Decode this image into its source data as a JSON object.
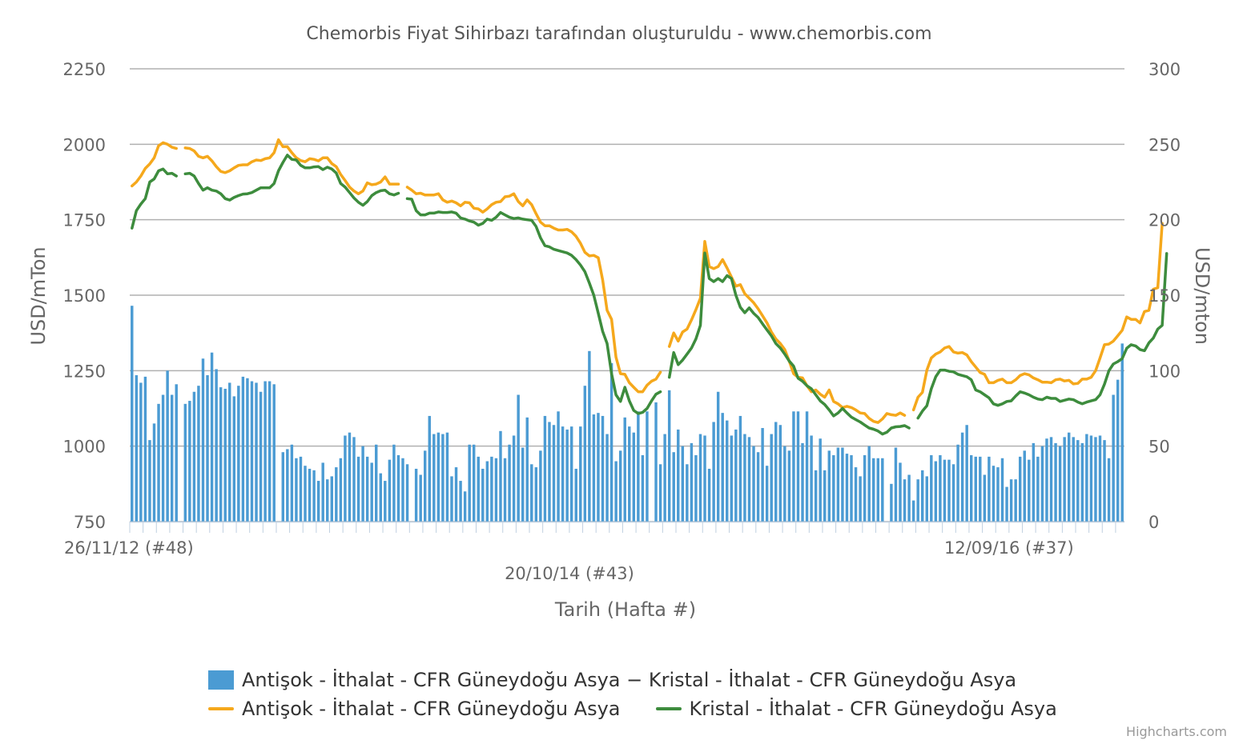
{
  "chart_data": {
    "type": "line",
    "title": "Chemorbis Fiyat Sihirbazı tarafından oluşturuldu - www.chemorbis.com",
    "xlabel": "Tarih (Hafta #)",
    "ylabel_left": "USD/mTon",
    "ylabel_right": "USD/mton",
    "ylim_left": [
      750,
      2250
    ],
    "ylim_right": [
      0,
      300
    ],
    "yticks_left": [
      "750",
      "1000",
      "1250",
      "1500",
      "1750",
      "2000",
      "2250"
    ],
    "yticks_right": [
      "0",
      "50",
      "100",
      "150",
      "200",
      "250",
      "300"
    ],
    "x_tick_labels": [
      {
        "label": "26/11/12 (#48)",
        "week_index": 0
      },
      {
        "label": "20/10/14 (#43)",
        "week_index": 99
      },
      {
        "label": "12/09/16 (#37)",
        "week_index": 198
      }
    ],
    "grid": true,
    "legend_position": "bottom",
    "series": [
      {
        "name": "Antişok - İthalat - CFR Güneydoğu Asya − Kristal - İthalat - CFR Güneydoğu Asya",
        "type": "bar",
        "axis": "right",
        "color": "#4b9bd3",
        "values": [
          143,
          97,
          92,
          96,
          54,
          65,
          78,
          84,
          100,
          84,
          91,
          null,
          78,
          80,
          86,
          90,
          108,
          97,
          112,
          101,
          89,
          88,
          92,
          83,
          90,
          96,
          95,
          93,
          92,
          86,
          93,
          93,
          91,
          null,
          46,
          48,
          51,
          42,
          43,
          37,
          35,
          34,
          27,
          39,
          28,
          30,
          36,
          42,
          57,
          59,
          56,
          43,
          50,
          43,
          39,
          51,
          32,
          27,
          41,
          51,
          44,
          42,
          38,
          null,
          35,
          31,
          47,
          70,
          58,
          59,
          58,
          59,
          30,
          36,
          27,
          20,
          51,
          51,
          43,
          35,
          40,
          43,
          42,
          60,
          42,
          51,
          57,
          84,
          49,
          69,
          38,
          36,
          47,
          70,
          66,
          64,
          73,
          63,
          61,
          63,
          35,
          63,
          90,
          113,
          71,
          72,
          70,
          58,
          105,
          40,
          47,
          69,
          63,
          59,
          73,
          44,
          73,
          null,
          79,
          38,
          58,
          87,
          46,
          61,
          50,
          38,
          52,
          44,
          58,
          57,
          35,
          66,
          86,
          72,
          67,
          57,
          61,
          70,
          58,
          56,
          50,
          46,
          62,
          37,
          58,
          66,
          64,
          50,
          47,
          73,
          73,
          52,
          73,
          57,
          34,
          55,
          34,
          47,
          44,
          49,
          49,
          45,
          44,
          36,
          30,
          44,
          50,
          42,
          42,
          42,
          null,
          25,
          49,
          39,
          28,
          31,
          14,
          28,
          34,
          30,
          44,
          40,
          44,
          41,
          41,
          38,
          51,
          59,
          64,
          44,
          43,
          43,
          31,
          43,
          37,
          36,
          42,
          23,
          28,
          28,
          43,
          47,
          41,
          52,
          43,
          50,
          55,
          56,
          52,
          50,
          56,
          59,
          56,
          54,
          52,
          58,
          57,
          56,
          57,
          54,
          42,
          84,
          94,
          118
        ]
      },
      {
        "name": "Antişok - İthalat - CFR Güneydoğu Asya",
        "type": "line",
        "axis": "left",
        "color": "#f5a81c",
        "values": [
          1862,
          1875,
          1895,
          1920,
          1935,
          1955,
          1995,
          2005,
          2000,
          1990,
          1986,
          null,
          1988,
          1986,
          1978,
          1960,
          1955,
          1960,
          1945,
          1926,
          1910,
          1906,
          1912,
          1922,
          1930,
          1932,
          1932,
          1942,
          1948,
          1946,
          1952,
          1955,
          1972,
          2015,
          1992,
          1992,
          1972,
          1955,
          1946,
          1942,
          1952,
          1950,
          1945,
          1955,
          1955,
          1936,
          1926,
          1900,
          1880,
          1858,
          1845,
          1836,
          1845,
          1872,
          1866,
          1868,
          1875,
          1892,
          1868,
          1868,
          1868,
          null,
          1858,
          1848,
          1836,
          1838,
          1832,
          1832,
          1832,
          1836,
          1816,
          1808,
          1812,
          1806,
          1796,
          1808,
          1806,
          1788,
          1786,
          1775,
          1786,
          1800,
          1808,
          1810,
          1826,
          1828,
          1836,
          1810,
          1796,
          1816,
          1800,
          1770,
          1742,
          1730,
          1730,
          1722,
          1716,
          1716,
          1718,
          1710,
          1695,
          1672,
          1642,
          1630,
          1632,
          1624,
          1550,
          1450,
          1420,
          1295,
          1240,
          1238,
          1210,
          1195,
          1180,
          1180,
          1202,
          1215,
          1222,
          1245,
          null,
          1330,
          1375,
          1348,
          1378,
          1388,
          1418,
          1452,
          1490,
          1678,
          1595,
          1588,
          1595,
          1618,
          1590,
          1560,
          1530,
          1535,
          1505,
          1490,
          1475,
          1455,
          1432,
          1408,
          1378,
          1355,
          1340,
          1320,
          1282,
          1240,
          1228,
          1226,
          1200,
          1180,
          1186,
          1172,
          1162,
          1186,
          1148,
          1140,
          1128,
          1132,
          1128,
          1120,
          1110,
          1108,
          1092,
          1082,
          1078,
          1090,
          1108,
          1104,
          1102,
          1110,
          1102,
          null,
          1120,
          1162,
          1178,
          1252,
          1292,
          1305,
          1312,
          1325,
          1330,
          1312,
          1308,
          1310,
          1302,
          1280,
          1262,
          1244,
          1238,
          1210,
          1210,
          1218,
          1222,
          1210,
          1210,
          1220,
          1234,
          1240,
          1236,
          1226,
          1220,
          1212,
          1212,
          1210,
          1220,
          1222,
          1216,
          1218,
          1206,
          1208,
          1222,
          1222,
          1228,
          1250,
          1292,
          1336,
          1338,
          1348,
          1366,
          1384,
          1428,
          1420,
          1420,
          1408,
          1446,
          1450,
          1520,
          1525,
          1738
        ]
      },
      {
        "name": "Kristal - İthalat - CFR Güneydoğu Asya",
        "type": "line",
        "axis": "left",
        "color": "#3d8c3d",
        "values": [
          1722,
          1780,
          1802,
          1820,
          1875,
          1885,
          1912,
          1918,
          1902,
          1904,
          1895,
          null,
          1902,
          1904,
          1895,
          1870,
          1848,
          1856,
          1848,
          1845,
          1836,
          1820,
          1815,
          1824,
          1830,
          1835,
          1836,
          1840,
          1848,
          1856,
          1856,
          1856,
          1870,
          1912,
          1940,
          1964,
          1950,
          1948,
          1930,
          1922,
          1922,
          1925,
          1926,
          1916,
          1924,
          1918,
          1905,
          1870,
          1858,
          1840,
          1822,
          1808,
          1798,
          1810,
          1830,
          1840,
          1846,
          1848,
          1836,
          1832,
          1838,
          null,
          1820,
          1818,
          1780,
          1766,
          1766,
          1772,
          1772,
          1776,
          1774,
          1774,
          1776,
          1772,
          1756,
          1752,
          1746,
          1742,
          1732,
          1738,
          1752,
          1748,
          1758,
          1774,
          1766,
          1758,
          1754,
          1756,
          1752,
          1750,
          1748,
          1728,
          1690,
          1664,
          1660,
          1652,
          1648,
          1644,
          1640,
          1632,
          1618,
          1600,
          1578,
          1540,
          1500,
          1440,
          1380,
          1340,
          1240,
          1170,
          1148,
          1195,
          1150,
          1118,
          1108,
          1112,
          1125,
          1150,
          1172,
          1180,
          null,
          1228,
          1310,
          1270,
          1285,
          1305,
          1325,
          1355,
          1400,
          1640,
          1555,
          1545,
          1555,
          1545,
          1565,
          1555,
          1500,
          1460,
          1442,
          1458,
          1440,
          1426,
          1405,
          1385,
          1365,
          1340,
          1325,
          1305,
          1282,
          1265,
          1225,
          1215,
          1200,
          1190,
          1170,
          1150,
          1138,
          1120,
          1100,
          1110,
          1125,
          1110,
          1096,
          1088,
          1080,
          1070,
          1060,
          1056,
          1050,
          1040,
          1046,
          1060,
          1064,
          1065,
          1068,
          1060,
          null,
          1093,
          1116,
          1134,
          1190,
          1230,
          1252,
          1252,
          1248,
          1246,
          1238,
          1234,
          1230,
          1220,
          1186,
          1180,
          1170,
          1160,
          1140,
          1135,
          1140,
          1148,
          1150,
          1166,
          1180,
          1176,
          1170,
          1162,
          1156,
          1154,
          1162,
          1158,
          1158,
          1148,
          1152,
          1156,
          1154,
          1146,
          1140,
          1146,
          1150,
          1154,
          1170,
          1205,
          1250,
          1272,
          1280,
          1290,
          1324,
          1336,
          1332,
          1320,
          1316,
          1342,
          1358,
          1388,
          1400,
          1638
        ]
      }
    ]
  },
  "legend": {
    "bar_label": "Antişok - İthalat - CFR Güneydoğu Asya − Kristal - İthalat - CFR Güneydoğu Asya",
    "line1_label": "Antişok - İthalat - CFR Güneydoğu Asya",
    "line2_label": "Kristal - İthalat - CFR Güneydoğu Asya"
  },
  "credit": "Highcharts.com",
  "colors": {
    "bar": "#4b9bd3",
    "antisok": "#f5a81c",
    "kristal": "#3d8c3d",
    "grid": "#b0b0b0",
    "axis_text": "#666666"
  }
}
